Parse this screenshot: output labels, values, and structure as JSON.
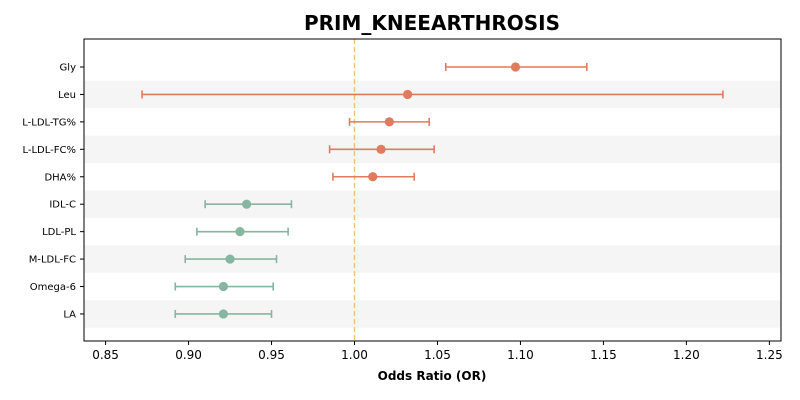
{
  "chart_data": {
    "type": "forest",
    "title": "PRIM_KNEEARTHROSIS",
    "xlabel": "Odds Ratio (OR)",
    "xlim": [
      0.837,
      1.257
    ],
    "xticks": [
      "0.85",
      "0.90",
      "0.95",
      "1.00",
      "1.05",
      "1.10",
      "1.15",
      "1.20",
      "1.25"
    ],
    "reference_line": 1.0,
    "grid": false,
    "alternating_row_shading": true,
    "colors": {
      "risk": "#e07b5f",
      "protective": "#86b5a0",
      "reference_line": "#f3c27a",
      "row_shade": "#f5f5f5"
    },
    "rows": [
      {
        "label": "Gly",
        "or": 1.097,
        "lower": 1.055,
        "upper": 1.14,
        "group": "risk"
      },
      {
        "label": "Leu",
        "or": 1.032,
        "lower": 0.872,
        "upper": 1.222,
        "group": "risk"
      },
      {
        "label": "L-LDL-TG%",
        "or": 1.021,
        "lower": 0.997,
        "upper": 1.045,
        "group": "risk"
      },
      {
        "label": "L-LDL-FC%",
        "or": 1.016,
        "lower": 0.985,
        "upper": 1.048,
        "group": "risk"
      },
      {
        "label": "DHA%",
        "or": 1.011,
        "lower": 0.987,
        "upper": 1.036,
        "group": "risk"
      },
      {
        "label": "IDL-C",
        "or": 0.935,
        "lower": 0.91,
        "upper": 0.962,
        "group": "protective"
      },
      {
        "label": "LDL-PL",
        "or": 0.931,
        "lower": 0.905,
        "upper": 0.96,
        "group": "protective"
      },
      {
        "label": "M-LDL-FC",
        "or": 0.925,
        "lower": 0.898,
        "upper": 0.953,
        "group": "protective"
      },
      {
        "label": "Omega-6",
        "or": 0.921,
        "lower": 0.892,
        "upper": 0.951,
        "group": "protective"
      },
      {
        "label": "LA",
        "or": 0.921,
        "lower": 0.892,
        "upper": 0.95,
        "group": "protective"
      }
    ]
  }
}
